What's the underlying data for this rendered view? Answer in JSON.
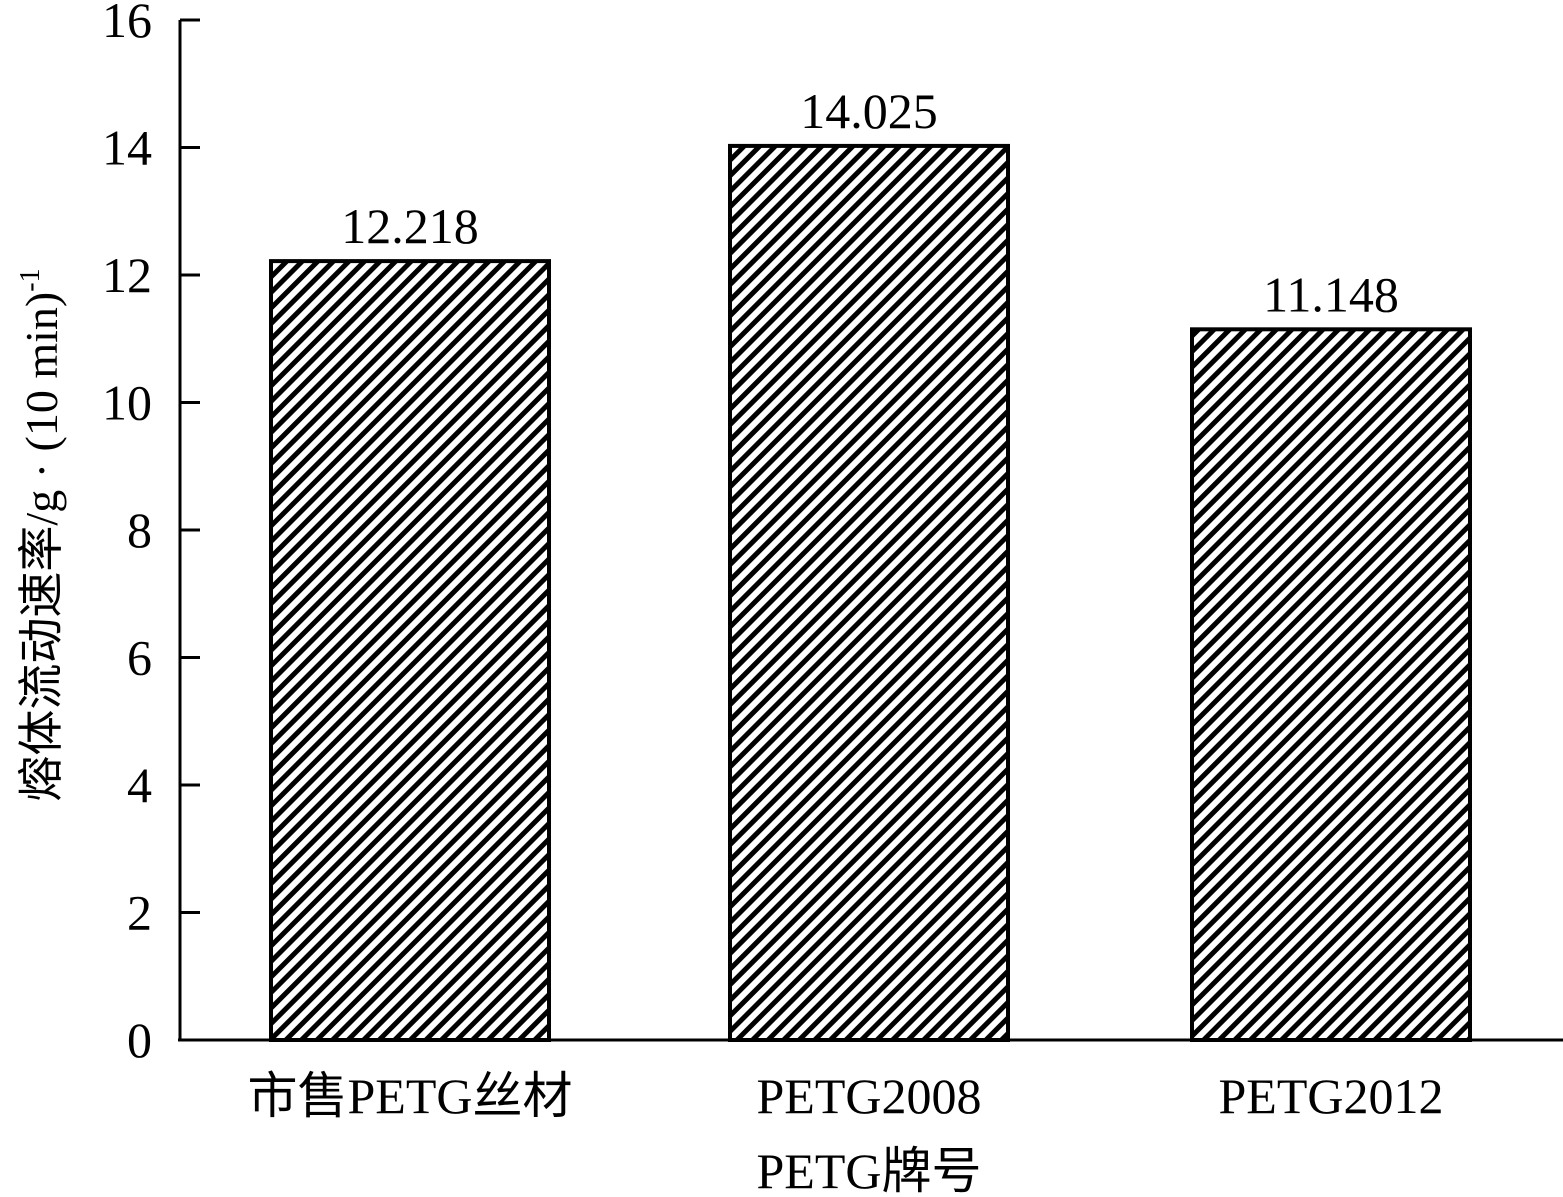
{
  "chart_data": {
    "type": "bar",
    "categories": [
      "市售PETG丝材",
      "PETG2008",
      "PETG2012"
    ],
    "values": [
      12.218,
      14.025,
      11.148
    ],
    "data_labels": [
      "12.218",
      "14.025",
      "11.148"
    ],
    "title": "",
    "xlabel": "PETG牌号",
    "ylabel": "熔体流动速率/g · (10 min)",
    "ylabel_superscript": "-1",
    "ylim": [
      0,
      16
    ],
    "yticks": [
      0,
      2,
      4,
      6,
      8,
      10,
      12,
      14,
      16
    ],
    "grid": false,
    "legend": "none",
    "bar_fill": "diagonal-hatch",
    "colors": {
      "bar_stroke": "#000000",
      "hatch": "#000000",
      "background": "#ffffff"
    }
  }
}
